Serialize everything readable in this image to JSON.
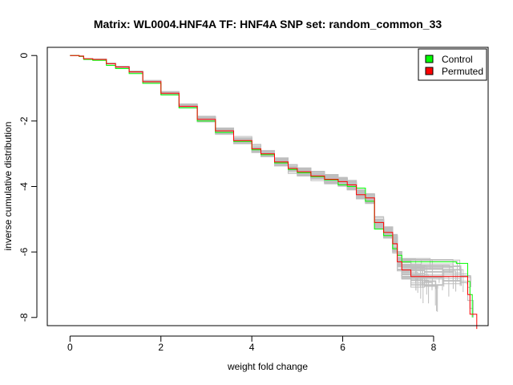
{
  "chart_data": {
    "type": "line",
    "title": "Matrix: WL0004.HNF4A TF: HNF4A SNP set: random_common_33",
    "xlabel": "weight fold change",
    "ylabel": "inverse cumulative distribution",
    "xlim": [
      -0.5,
      9.2
    ],
    "ylim": [
      -8.25,
      0.25
    ],
    "xticks": [
      0,
      2,
      4,
      6,
      8
    ],
    "yticks": [
      0,
      -2,
      -4,
      -6,
      -8
    ],
    "grid": false,
    "legend_position": "top-right",
    "legend": [
      {
        "label": "Control",
        "color": "#00ff00"
      },
      {
        "label": "Permuted",
        "color": "#ff0000"
      }
    ],
    "series": [
      {
        "name": "Permuted",
        "color": "#ff0000",
        "x": [
          0.0,
          0.2,
          0.3,
          0.5,
          0.8,
          1.0,
          1.3,
          1.6,
          2.0,
          2.4,
          2.8,
          3.2,
          3.6,
          4.0,
          4.2,
          4.5,
          4.8,
          5.0,
          5.3,
          5.6,
          5.9,
          6.1,
          6.3,
          6.5,
          6.7,
          6.9,
          7.1,
          7.2,
          7.3,
          7.5,
          7.8,
          8.2,
          8.6,
          8.75,
          8.8,
          8.9,
          8.95
        ],
        "y": [
          0.0,
          -0.02,
          -0.1,
          -0.12,
          -0.25,
          -0.35,
          -0.5,
          -0.8,
          -1.15,
          -1.55,
          -1.95,
          -2.3,
          -2.6,
          -2.85,
          -3.0,
          -3.25,
          -3.45,
          -3.55,
          -3.68,
          -3.78,
          -3.85,
          -3.95,
          -4.25,
          -4.35,
          -5.1,
          -5.4,
          -5.75,
          -6.3,
          -6.55,
          -6.75,
          -6.75,
          -6.75,
          -6.75,
          -7.3,
          -7.9,
          -7.9,
          -8.35
        ]
      },
      {
        "name": "Control",
        "color": "#00ff00",
        "x": [
          0.0,
          0.2,
          0.3,
          0.5,
          0.8,
          1.0,
          1.3,
          1.6,
          2.0,
          2.4,
          2.8,
          3.2,
          3.6,
          4.0,
          4.2,
          4.5,
          4.8,
          5.0,
          5.3,
          5.6,
          5.9,
          6.1,
          6.3,
          6.5,
          6.7,
          6.9,
          7.1,
          7.2,
          7.3,
          8.5,
          8.75,
          8.8,
          8.85
        ],
        "y": [
          0.0,
          -0.03,
          -0.12,
          -0.15,
          -0.3,
          -0.4,
          -0.55,
          -0.85,
          -1.2,
          -1.6,
          -2.0,
          -2.35,
          -2.62,
          -2.88,
          -3.03,
          -3.28,
          -3.48,
          -3.58,
          -3.7,
          -3.8,
          -3.95,
          -4.0,
          -4.05,
          -4.45,
          -5.3,
          -5.5,
          -5.9,
          -6.1,
          -6.3,
          -6.35,
          -6.9,
          -7.3,
          -8.0
        ]
      }
    ],
    "background_series": {
      "color": "#bebebe",
      "count": 50
    }
  }
}
